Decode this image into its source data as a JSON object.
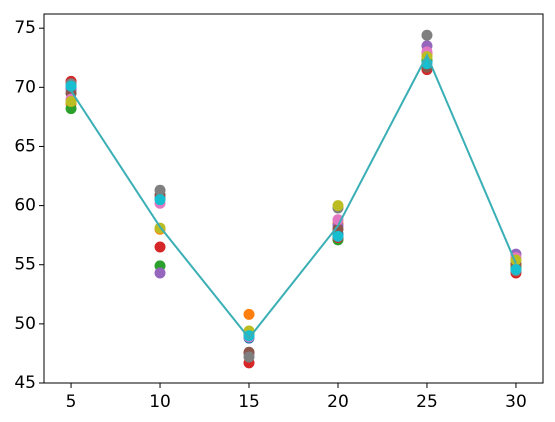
{
  "chart_data": {
    "type": "scatter",
    "x": [
      5,
      10,
      15,
      20,
      25,
      30
    ],
    "xlim": [
      3.48,
      31.52
    ],
    "xticks": [
      5,
      10,
      15,
      20,
      25,
      30
    ],
    "ylim": [
      45,
      76.2
    ],
    "yticks": [
      45,
      50,
      55,
      60,
      65,
      70,
      75
    ],
    "grid": false,
    "series": [
      {
        "color": "#1f77b4",
        "values": [
          70.0,
          60.6,
          48.8,
          57.6,
          72.2,
          54.8
        ]
      },
      {
        "color": "#ff7f0e",
        "values": [
          68.6,
          58.0,
          50.8,
          58.5,
          72.8,
          55.0
        ]
      },
      {
        "color": "#2ca02c",
        "values": [
          68.2,
          54.9,
          49.2,
          57.1,
          72.3,
          54.7
        ]
      },
      {
        "color": "#d62728",
        "values": [
          70.5,
          56.5,
          46.7,
          57.3,
          71.5,
          54.3
        ]
      },
      {
        "color": "#9467bd",
        "values": [
          69.8,
          54.3,
          47.5,
          58.3,
          73.5,
          55.9
        ]
      },
      {
        "color": "#8c564b",
        "values": [
          69.5,
          60.9,
          47.6,
          58.0,
          71.7,
          55.1
        ]
      },
      {
        "color": "#e377c2",
        "values": [
          69.0,
          60.2,
          48.9,
          58.8,
          73.0,
          55.6
        ]
      },
      {
        "color": "#7f7f7f",
        "values": [
          70.3,
          61.3,
          47.2,
          59.8,
          74.4,
          54.5
        ]
      },
      {
        "color": "#bcbd22",
        "values": [
          68.8,
          58.1,
          49.4,
          60.0,
          72.6,
          55.4
        ]
      },
      {
        "color": "#17becf",
        "values": [
          70.1,
          60.5,
          49.0,
          57.4,
          72.0,
          54.6
        ]
      }
    ],
    "lines": [
      {
        "color": "#3aafb5",
        "values": [
          69.7,
          58.2,
          48.8,
          58.3,
          72.7,
          55.1
        ]
      }
    ]
  }
}
